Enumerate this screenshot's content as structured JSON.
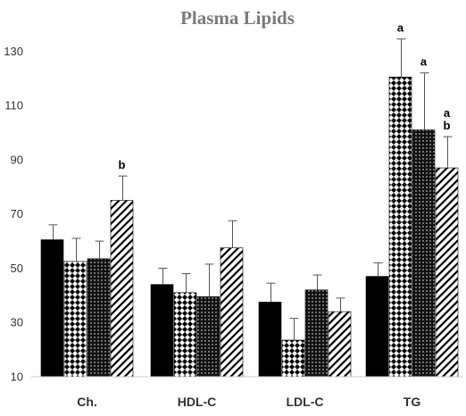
{
  "chart_data": {
    "type": "bar",
    "title": "Plasma Lipids",
    "xlabel": "",
    "ylabel": "",
    "ylim": [
      10,
      140
    ],
    "yticks": [
      10,
      30,
      50,
      70,
      90,
      110,
      130
    ],
    "grid": false,
    "legend": "none",
    "categories": [
      "Ch.",
      "HDL-C",
      "LDL-C",
      "TG"
    ],
    "series": [
      {
        "pattern": "solid-black",
        "values": [
          60.5,
          44,
          37.5,
          47
        ],
        "errors": [
          5.5,
          6,
          7,
          5
        ]
      },
      {
        "pattern": "checkerboard",
        "values": [
          52.5,
          41,
          23.5,
          120.5
        ],
        "errors": [
          8.5,
          7,
          8,
          14
        ]
      },
      {
        "pattern": "dotted-dark",
        "values": [
          53.5,
          39.5,
          42,
          101
        ],
        "errors": [
          6.5,
          12,
          5.5,
          21
        ]
      },
      {
        "pattern": "diagonal-stripe",
        "values": [
          75,
          57.5,
          34,
          87
        ],
        "errors": [
          9,
          10,
          5,
          11.5
        ]
      }
    ],
    "annotations": [
      {
        "category": "Ch.",
        "series": 3,
        "lines": [
          "b"
        ]
      },
      {
        "category": "TG",
        "series": 1,
        "lines": [
          "a"
        ]
      },
      {
        "category": "TG",
        "series": 2,
        "lines": [
          "a"
        ]
      },
      {
        "category": "TG",
        "series": 3,
        "lines": [
          "a",
          "b"
        ]
      }
    ]
  }
}
